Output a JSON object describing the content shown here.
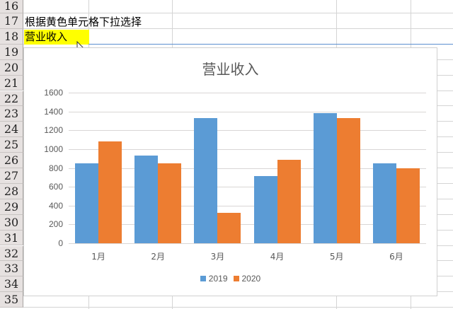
{
  "spreadsheet": {
    "row_numbers": [
      "16",
      "17",
      "18",
      "19",
      "20",
      "21",
      "22",
      "23",
      "24",
      "25",
      "26",
      "27",
      "28",
      "29",
      "30",
      "31",
      "32",
      "33",
      "34",
      "35"
    ],
    "cells": {
      "A17": "根据黄色单元格下拉选择",
      "A18": "营业收入"
    },
    "highlight_color": "#ffff00"
  },
  "chart_data": {
    "type": "bar",
    "title": "营业收入",
    "categories": [
      "1月",
      "2月",
      "3月",
      "4月",
      "5月",
      "6月"
    ],
    "series": [
      {
        "name": "2019",
        "color": "#5b9bd5",
        "values": [
          850,
          930,
          1330,
          710,
          1380,
          850
        ]
      },
      {
        "name": "2020",
        "color": "#ed7d31",
        "values": [
          1080,
          850,
          320,
          890,
          1330,
          800
        ]
      }
    ],
    "xlabel": "",
    "ylabel": "",
    "ylim": [
      0,
      1600
    ],
    "yticks": [
      "0",
      "200",
      "400",
      "600",
      "800",
      "1000",
      "1200",
      "1400",
      "1600"
    ],
    "grid": true,
    "legend_position": "bottom"
  }
}
